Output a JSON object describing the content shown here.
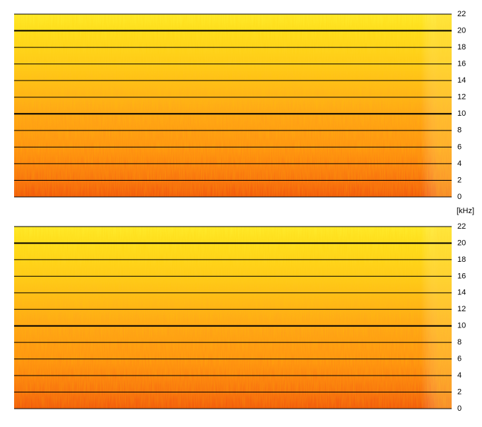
{
  "chart_data": [
    {
      "type": "spectrogram",
      "ylim": [
        0,
        22
      ],
      "yticks": [
        0,
        2,
        4,
        6,
        8,
        10,
        12,
        14,
        16,
        18,
        20,
        22
      ],
      "grid": true
    },
    {
      "type": "spectrogram",
      "y_label": "[kHz]",
      "ylim": [
        0,
        22
      ],
      "yticks": [
        0,
        2,
        4,
        6,
        8,
        10,
        12,
        14,
        16,
        18,
        20,
        22
      ],
      "grid": true
    }
  ]
}
